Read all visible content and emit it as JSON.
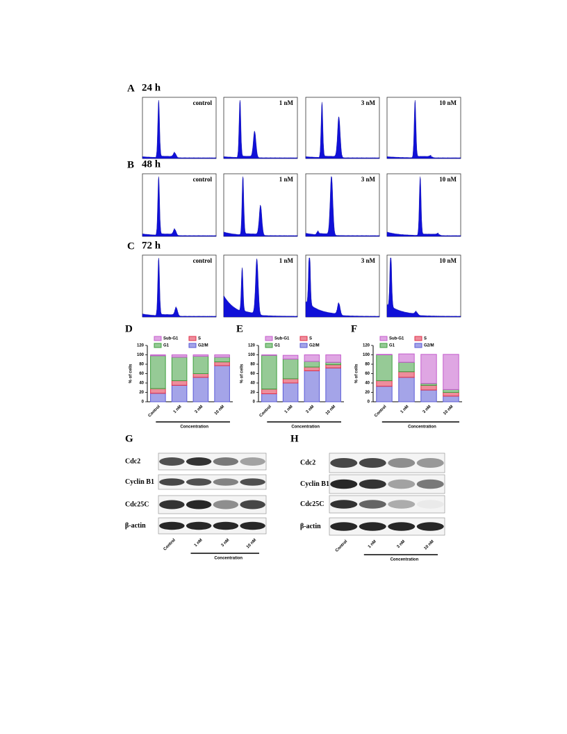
{
  "flow": [
    {
      "label": "A",
      "time": "24 h",
      "panels": [
        "control",
        "1 nM",
        "3 nM",
        "10 nM"
      ]
    },
    {
      "label": "B",
      "time": "48 h",
      "panels": [
        "control",
        "1 nM",
        "3 nM",
        "10 nM"
      ]
    },
    {
      "label": "C",
      "time": "72 h",
      "panels": [
        "control",
        "1 nM",
        "3 nM",
        "10 nM"
      ]
    }
  ],
  "chart_data": [
    {
      "type": "stacked_bar",
      "label": "D",
      "ylabel": "% of cells",
      "xlabel": "Concentration",
      "categories": [
        "Control",
        "1 nM",
        "3 nM",
        "10 nM"
      ],
      "ylim": [
        0,
        120
      ],
      "yticks": [
        0,
        20,
        40,
        60,
        80,
        100,
        120
      ],
      "series": [
        {
          "name": "G2/M",
          "color": "#5a5ad6",
          "values": [
            18,
            35,
            52,
            77
          ]
        },
        {
          "name": "S",
          "color": "#e0304a",
          "values": [
            10,
            10,
            8,
            8
          ]
        },
        {
          "name": "G1",
          "color": "#3f9f3f",
          "values": [
            70,
            50,
            37,
            10
          ]
        },
        {
          "name": "Sub-G1",
          "color": "#c45ccc",
          "values": [
            2,
            5,
            3,
            5
          ]
        }
      ]
    },
    {
      "type": "stacked_bar",
      "label": "E",
      "ylabel": "% of cells",
      "xlabel": "Concentration",
      "categories": [
        "Control",
        "1 nM",
        "3 nM",
        "10 nM"
      ],
      "ylim": [
        0,
        120
      ],
      "yticks": [
        0,
        20,
        40,
        60,
        80,
        100,
        120
      ],
      "series": [
        {
          "name": "G2/M",
          "color": "#5a5ad6",
          "values": [
            17,
            40,
            66,
            72
          ]
        },
        {
          "name": "S",
          "color": "#e0304a",
          "values": [
            10,
            9,
            8,
            7
          ]
        },
        {
          "name": "G1",
          "color": "#3f9f3f",
          "values": [
            72,
            42,
            12,
            5
          ]
        },
        {
          "name": "Sub-G1",
          "color": "#c45ccc",
          "values": [
            1,
            8,
            14,
            16
          ]
        }
      ]
    },
    {
      "type": "stacked_bar",
      "label": "F",
      "ylabel": "% of cells",
      "xlabel": "Concentration",
      "categories": [
        "Control",
        "1 nM",
        "3 nM",
        "10 nM"
      ],
      "ylim": [
        0,
        120
      ],
      "yticks": [
        0,
        20,
        40,
        60,
        80,
        100,
        120
      ],
      "series": [
        {
          "name": "G2/M",
          "color": "#5a5ad6",
          "values": [
            33,
            52,
            25,
            12
          ]
        },
        {
          "name": "S",
          "color": "#e0304a",
          "values": [
            12,
            12,
            10,
            8
          ]
        },
        {
          "name": "G1",
          "color": "#3f9f3f",
          "values": [
            55,
            20,
            4,
            6
          ]
        },
        {
          "name": "Sub-G1",
          "color": "#c45ccc",
          "values": [
            1,
            18,
            62,
            75
          ]
        }
      ]
    }
  ],
  "blots": [
    {
      "label": "G",
      "proteins": [
        "Cdc2",
        "Cyclin B1",
        "Cdc25C",
        "β-actin"
      ],
      "lanes": [
        "Control",
        "1 nM",
        "3 nM",
        "10 nM"
      ],
      "xlabel": "Concentration"
    },
    {
      "label": "H",
      "proteins": [
        "Cdc2",
        "Cyclin B1",
        "Cdc25C",
        "β-actin"
      ],
      "lanes": [
        "Control",
        "1 nM",
        "3 nM",
        "10 nM"
      ],
      "xlabel": "Concentration"
    }
  ]
}
